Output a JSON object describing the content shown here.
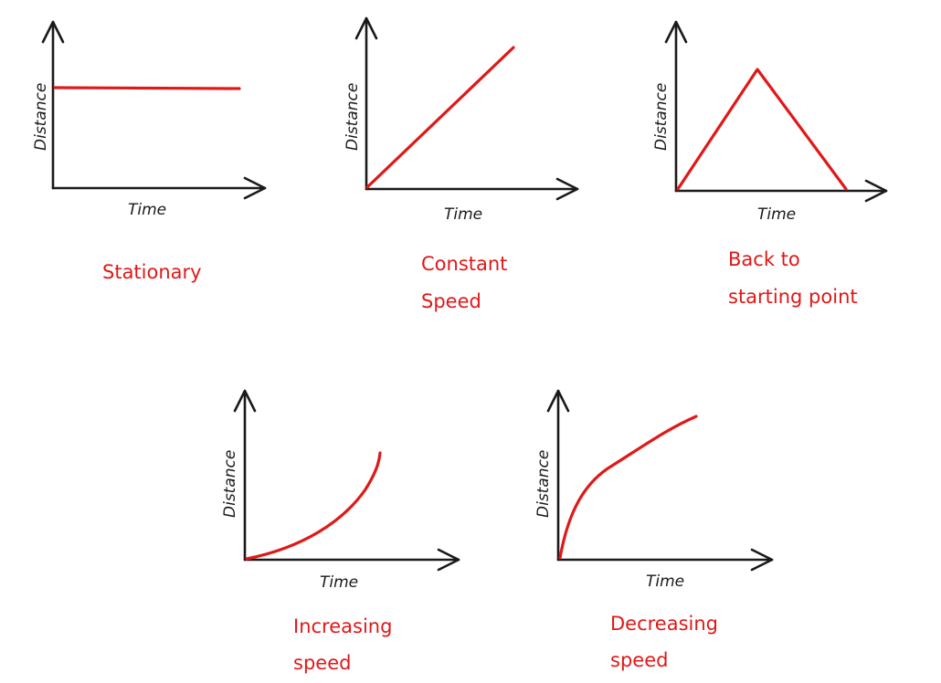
{
  "colors": {
    "axis": "#1a1a1a",
    "curve": "#e01818",
    "background": "#ffffff"
  },
  "graphs": [
    {
      "xlabel": "Time",
      "ylabel": "Distance",
      "caption": [
        "Stationary"
      ],
      "shape": "flat line"
    },
    {
      "xlabel": "Time",
      "ylabel": "Distance",
      "caption": [
        "Constant",
        "Speed"
      ],
      "shape": "straight rising line"
    },
    {
      "xlabel": "Time",
      "ylabel": "Distance",
      "caption": [
        "Back to",
        "starting point"
      ],
      "shape": "rise then fall"
    },
    {
      "xlabel": "Time",
      "ylabel": "Distance",
      "caption": [
        "Increasing",
        "speed"
      ],
      "shape": "upward curving"
    },
    {
      "xlabel": "Time",
      "ylabel": "Distance",
      "caption": [
        "Decreasing",
        "speed"
      ],
      "shape": "downward curving"
    }
  ]
}
